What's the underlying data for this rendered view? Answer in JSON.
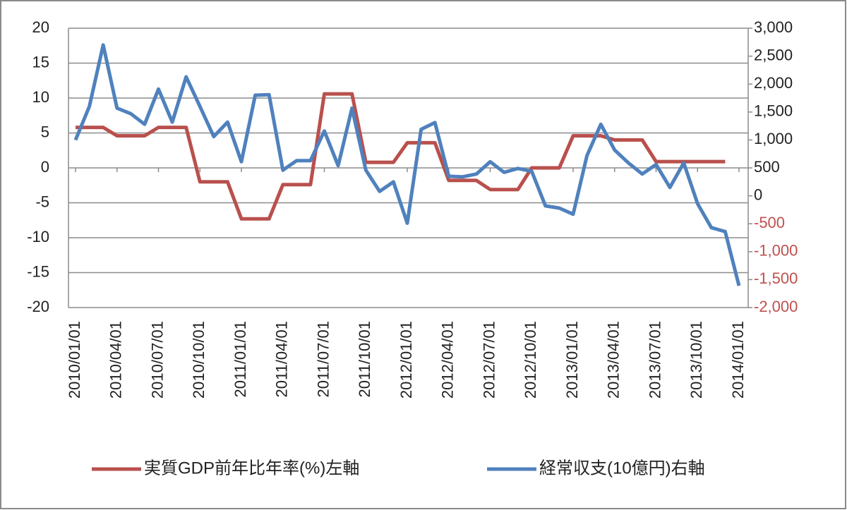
{
  "chart_data": {
    "type": "line",
    "categories": [
      "2010/01/01",
      null,
      null,
      "2010/04/01",
      null,
      null,
      "2010/07/01",
      null,
      null,
      "2010/10/01",
      null,
      null,
      "2011/01/01",
      null,
      null,
      "2011/04/01",
      null,
      null,
      "2011/07/01",
      null,
      null,
      "2011/10/01",
      null,
      null,
      "2012/01/01",
      null,
      null,
      "2012/04/01",
      null,
      null,
      "2012/07/01",
      null,
      null,
      "2012/10/01",
      null,
      null,
      "2013/01/01",
      null,
      null,
      "2013/04/01",
      null,
      null,
      "2013/07/01",
      null,
      null,
      "2013/10/01",
      null,
      null,
      "2014/01/01"
    ],
    "series": [
      {
        "name": "実質GDP前年比年率(%)左軸",
        "color": "#b9504d",
        "values": [
          5.8,
          5.8,
          5.8,
          4.6,
          4.6,
          4.6,
          5.8,
          5.8,
          5.8,
          -2,
          -2,
          -2,
          -7.3,
          -7.3,
          -7.3,
          -2.4,
          -2.4,
          -2.4,
          10.6,
          10.6,
          10.6,
          0.8,
          0.8,
          0.8,
          3.6,
          3.6,
          3.6,
          -1.8,
          -1.8,
          -1.8,
          -3.1,
          -3.1,
          -3.1,
          0,
          0,
          0,
          4.6,
          4.6,
          4.6,
          4.0,
          4.0,
          4.0,
          0.9,
          0.9,
          0.9,
          0.9,
          0.9,
          0.9,
          null
        ]
      },
      {
        "name": "経常収支(10億円)右軸",
        "color": "#4f81bd",
        "axis": "y2",
        "values": [
          1000,
          1600,
          2700,
          1570,
          1470,
          1280,
          1910,
          1320,
          2130,
          1600,
          1060,
          1320,
          610,
          1800,
          1810,
          460,
          630,
          630,
          1160,
          540,
          1570,
          460,
          80,
          250,
          -490,
          1190,
          1310,
          350,
          340,
          390,
          610,
          420,
          490,
          440,
          -180,
          -220,
          -330,
          720,
          1280,
          820,
          590,
          390,
          560,
          150,
          590,
          -140,
          -570,
          -640,
          -1610
        ]
      }
    ],
    "ylim": [
      -20,
      20
    ],
    "yticks": [
      20,
      15,
      10,
      5,
      0,
      -5,
      -10,
      -15,
      -20
    ],
    "y2lim": [
      -2000,
      3000
    ],
    "y2ticks": [
      {
        "value": 3000,
        "label": "3,000"
      },
      {
        "value": 2500,
        "label": "2,500"
      },
      {
        "value": 2000,
        "label": "2,000"
      },
      {
        "value": 1500,
        "label": "1,500"
      },
      {
        "value": 1000,
        "label": "1,000"
      },
      500,
      0,
      -500,
      {
        "value": -1000,
        "label": "-1,000"
      },
      {
        "value": -1500,
        "label": "-1,500"
      },
      {
        "value": -2000,
        "label": "-2,000"
      }
    ],
    "y2_negative_tick_color": "#c0504d",
    "grid": true,
    "legend": "bottom"
  }
}
